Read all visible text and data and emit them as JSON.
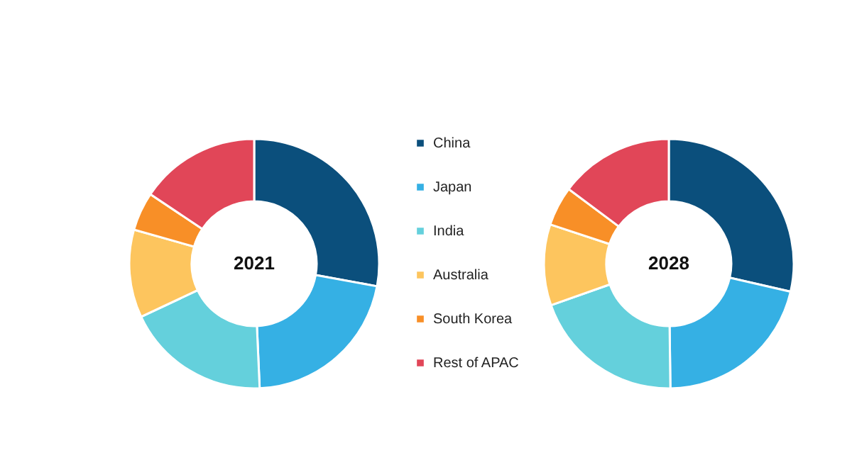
{
  "chart_data": {
    "type": "donut",
    "categories": [
      "China",
      "Japan",
      "India",
      "Australia",
      "South Korea",
      "Rest of APAC"
    ],
    "colors": [
      "#0b4f7c",
      "#35b0e4",
      "#64d0dc",
      "#fdc55e",
      "#f88f27",
      "#e14658"
    ],
    "legend": "right",
    "series": [
      {
        "name": "2021",
        "values": [
          27.9,
          21.4,
          18.7,
          11.4,
          5.0,
          15.6
        ]
      },
      {
        "name": "2028",
        "values": [
          28.6,
          21.2,
          19.8,
          10.5,
          5.1,
          14.8
        ]
      }
    ]
  }
}
